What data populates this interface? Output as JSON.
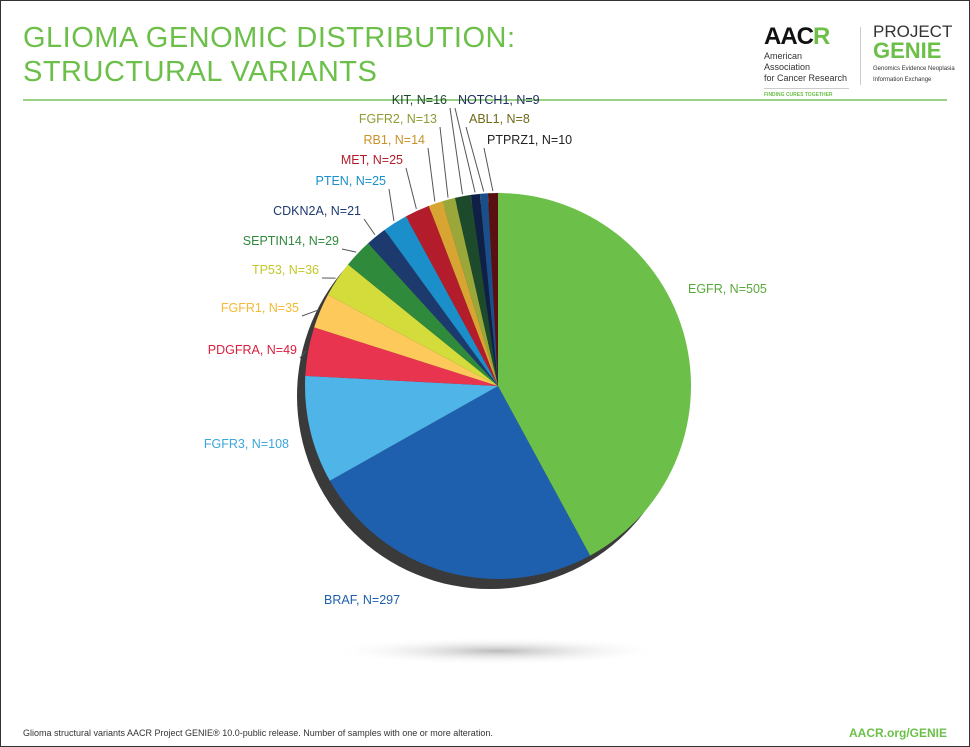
{
  "header": {
    "title_line1": "GLIOMA GENOMIC DISTRIBUTION:",
    "title_line2": "STRUCTURAL VARIANTS"
  },
  "logos": {
    "aacr": {
      "mark_a": "AAC",
      "mark_b": "R",
      "line1": "American Association",
      "line2": "for Cancer Research",
      "tagline": "FINDING CURES TOGETHER"
    },
    "genie": {
      "project": "PROJECT",
      "genie": "GENIE",
      "line1": "Genomics Evidence Neoplasia",
      "line2": "Information Exchange"
    }
  },
  "footer": {
    "note": "Glioma structural variants AACR Project GENIE® 10.0-public release. Number of samples with one or more alteration.",
    "url": "AACR.org/GENIE"
  },
  "chart_data": {
    "type": "pie",
    "title": "GLIOMA GENOMIC DISTRIBUTION: STRUCTURAL VARIANTS",
    "start": "12 o'clock, clockwise",
    "slices": [
      {
        "label": "EGFR, N=505",
        "name": "EGFR",
        "value": 505,
        "color": "#6cc04a"
      },
      {
        "label": "BRAF, N=297",
        "name": "BRAF",
        "value": 297,
        "color": "#1f60ae"
      },
      {
        "label": "FGFR3, N=108",
        "name": "FGFR3",
        "value": 108,
        "color": "#4fb4e8"
      },
      {
        "label": "PDGFRA, N=49",
        "name": "PDGFRA",
        "value": 49,
        "color": "#e8344e"
      },
      {
        "label": "FGFR1, N=35",
        "name": "FGFR1",
        "value": 35,
        "color": "#fdc95a"
      },
      {
        "label": "TP53, N=36",
        "name": "TP53",
        "value": 36,
        "color": "#d3dc3a"
      },
      {
        "label": "SEPTIN14, N=29",
        "name": "SEPTIN14",
        "value": 29,
        "color": "#2f8a3c"
      },
      {
        "label": "CDKN2A, N=21",
        "name": "CDKN2A",
        "value": 21,
        "color": "#1d3a6e"
      },
      {
        "label": "PTEN, N=25",
        "name": "PTEN",
        "value": 25,
        "color": "#1a8fc9"
      },
      {
        "label": "MET, N=25",
        "name": "MET",
        "value": 25,
        "color": "#b31d2b"
      },
      {
        "label": "RB1, N=14",
        "name": "RB1",
        "value": 14,
        "color": "#d8a533"
      },
      {
        "label": "FGFR2, N=13",
        "name": "FGFR2",
        "value": 13,
        "color": "#9aa83a"
      },
      {
        "label": "KIT, N=16",
        "name": "KIT",
        "value": 16,
        "color": "#1c4a2a"
      },
      {
        "label": "NOTCH1, N=9",
        "name": "NOTCH1",
        "value": 9,
        "color": "#0f1f45"
      },
      {
        "label": "ABL1, N=8",
        "name": "ABL1",
        "value": 8,
        "color": "#1a4f8a"
      },
      {
        "label": "PTPRZ1, N=10",
        "name": "PTPRZ1",
        "value": 10,
        "color": "#5a1010"
      }
    ],
    "label_colors": [
      "#5aa83a",
      "#1f60ae",
      "#3aa6dc",
      "#d8203f",
      "#f5b935",
      "#c2c82a",
      "#2f8a3c",
      "#1d3a6e",
      "#1a8fc9",
      "#b31d2b",
      "#c9932a",
      "#8f9b34",
      "#1c4a2a",
      "#1d2f5e",
      "#6f6a1a",
      "#222222"
    ]
  }
}
